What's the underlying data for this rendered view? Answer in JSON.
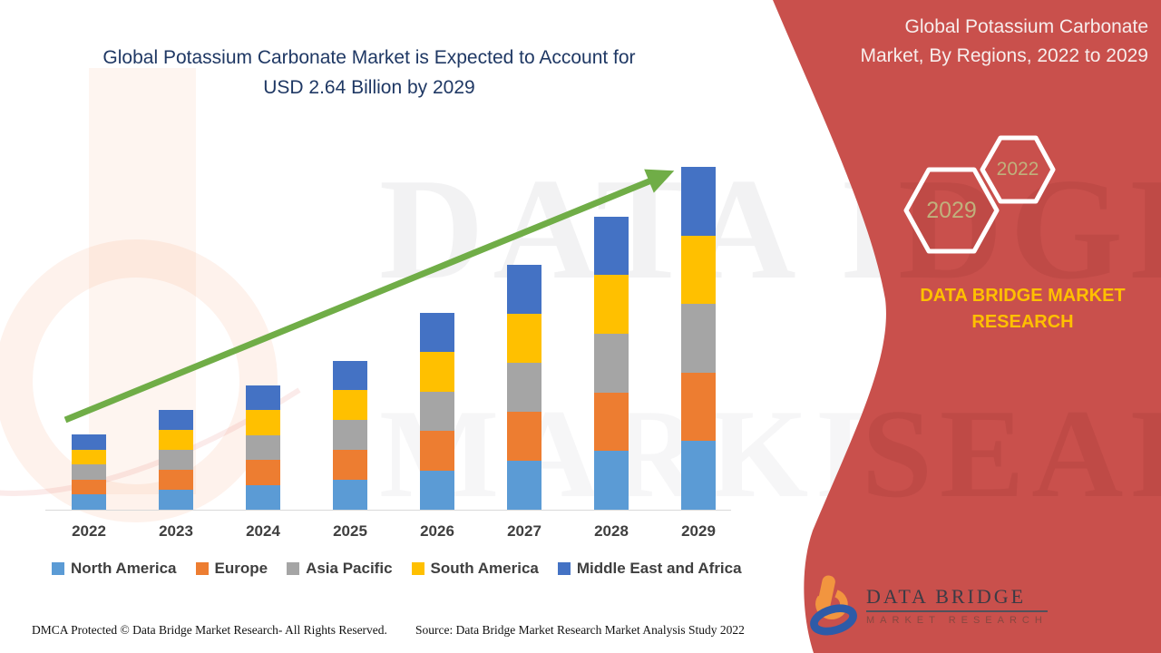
{
  "header": {
    "title_line1": "Global Potassium Carbonate Market is Expected to Account for",
    "title_line2": "USD 2.64 Billion by 2029"
  },
  "right_panel": {
    "title_line1": "Global Potassium Carbonate",
    "title_line2": "Market, By Regions, 2022 to 2029",
    "hex_large_year": "2029",
    "hex_small_year": "2022",
    "brand_line1": "DATA BRIDGE MARKET",
    "brand_line2": "RESEARCH",
    "logo_title": "DATA BRIDGE",
    "logo_subtitle": "MARKET RESEARCH"
  },
  "watermark": {
    "text_top": "DATA BRI",
    "text_bottom": "MARKET RE",
    "panel_top": "DGE",
    "panel_bottom": "SEARCH"
  },
  "footer": {
    "dmca": "DMCA Protected © Data Bridge Market Research- All Rights Reserved.",
    "source": "Source: Data Bridge Market Research Market Analysis Study 2022"
  },
  "colors": {
    "panel_red": "#c9504c",
    "title_navy": "#1f3864",
    "arrow_green": "#70ad47",
    "hex_year_text": "#c0b17c",
    "brand_yellow": "#ffc000",
    "axis_text": "#3f3f3f",
    "axis_line": "#d9d9d9"
  },
  "chart_data": {
    "type": "bar",
    "stacked": true,
    "title": "Global Potassium Carbonate Market is Expected to Account for USD 2.64 Billion by 2029",
    "unit": "USD Billion",
    "xlabel": "",
    "ylabel": "",
    "ylim": [
      0,
      2.8
    ],
    "grid": false,
    "legend_position": "bottom",
    "annotation": "green upward trend arrow from 2022 to 2029",
    "categories": [
      "2022",
      "2023",
      "2024",
      "2025",
      "2026",
      "2027",
      "2028",
      "2029"
    ],
    "totals": [
      0.58,
      0.77,
      0.96,
      1.15,
      1.52,
      1.89,
      2.26,
      2.64
    ],
    "series": [
      {
        "name": "North America",
        "color": "#5b9bd5",
        "values": [
          0.116,
          0.154,
          0.192,
          0.23,
          0.304,
          0.378,
          0.452,
          0.528
        ]
      },
      {
        "name": "Europe",
        "color": "#ed7d31",
        "values": [
          0.116,
          0.154,
          0.192,
          0.23,
          0.304,
          0.378,
          0.452,
          0.528
        ]
      },
      {
        "name": "Asia Pacific",
        "color": "#a5a5a5",
        "values": [
          0.116,
          0.154,
          0.192,
          0.23,
          0.304,
          0.378,
          0.452,
          0.528
        ]
      },
      {
        "name": "South America",
        "color": "#ffc000",
        "values": [
          0.116,
          0.154,
          0.192,
          0.23,
          0.304,
          0.378,
          0.452,
          0.528
        ]
      },
      {
        "name": "Middle East and Africa",
        "color": "#4472c4",
        "values": [
          0.116,
          0.154,
          0.192,
          0.23,
          0.304,
          0.378,
          0.452,
          0.528
        ]
      }
    ]
  }
}
